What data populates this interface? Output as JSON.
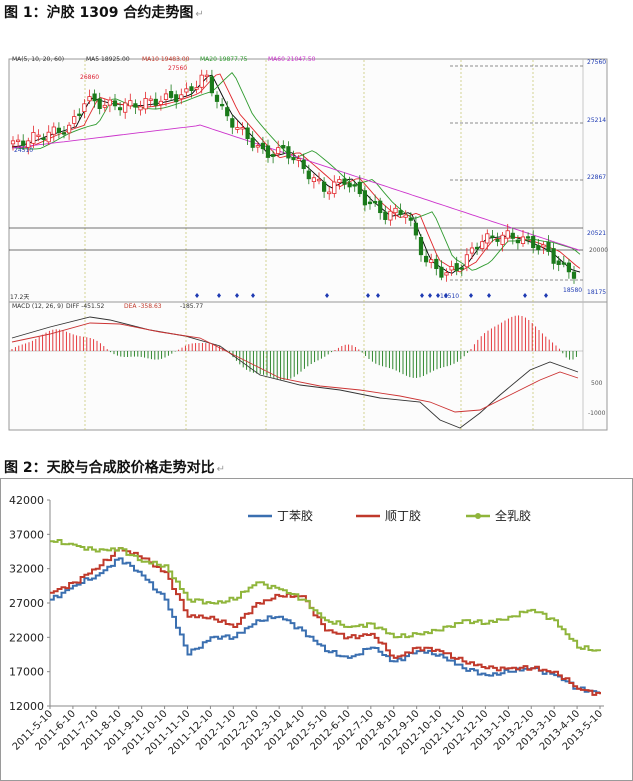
{
  "figure1": {
    "caption": "图 1：沪胶 1309 合约走势图",
    "ma_header": {
      "label": "MA(5, 10, 20, 60)",
      "ma5": "MA5 18925.00",
      "ma10": "MA10 19483.00",
      "ma20": "MA20 19877.75",
      "ma60": "MA60 21047.50"
    },
    "macd_header": {
      "label": "MACD (12, 26, 9)",
      "diff": "DIFF -451.52",
      "dea": "DEA -358.63",
      "macd": "-185.77"
    },
    "volume_label": "17.2天",
    "price_axis_labels": [
      "27560",
      "25214",
      "22867",
      "20521",
      "20000",
      "18175"
    ],
    "macd_axis_labels": [
      "500",
      "-1000"
    ],
    "annotations": [
      "26860",
      "27560",
      "24510",
      "16510",
      "18580"
    ],
    "colors": {
      "up": "#e2262b",
      "down": "#1a7a1a",
      "ma5": "#000000",
      "ma10": "#e0262b",
      "ma20": "#2f9b2f",
      "ma60": "#cc33cc",
      "diff": "#333333",
      "dea": "#cc3333",
      "marker": "#1f3bb3"
    }
  },
  "figure2": {
    "caption": "图 2：天胶与合成胶价格走势对比",
    "chart_data": {
      "type": "line",
      "title": "",
      "xlabel": "",
      "ylabel": "",
      "ylim": [
        12000,
        42000
      ],
      "yticks": [
        12000,
        17000,
        22000,
        27000,
        32000,
        37000,
        42000
      ],
      "legend_position": "top",
      "x": [
        "2011-5-10",
        "2011-6-10",
        "2011-7-10",
        "2011-8-10",
        "2011-9-10",
        "2011-10-10",
        "2011-11-10",
        "2011-12-10",
        "2012-1-10",
        "2012-2-10",
        "2012-3-10",
        "2012-4-10",
        "2012-5-10",
        "2012-6-10",
        "2012-7-10",
        "2012-8-10",
        "2012-9-10",
        "2012-10-10",
        "2012-11-10",
        "2012-12-10",
        "2013-1-10",
        "2013-2-10",
        "2013-3-10",
        "2013-4-10",
        "2013-5-10"
      ],
      "series": [
        {
          "name": "丁苯胶",
          "color": "#3a6fb0",
          "values": [
            27500,
            29500,
            31000,
            33500,
            31000,
            27500,
            19500,
            22000,
            22000,
            24500,
            25000,
            23000,
            20000,
            19000,
            20500,
            18500,
            20000,
            19500,
            17500,
            16500,
            17000,
            17500,
            16500,
            14500,
            14000
          ]
        },
        {
          "name": "顺丁胶",
          "color": "#c0392b",
          "values": [
            28500,
            30000,
            32000,
            35000,
            33500,
            31500,
            25000,
            25000,
            23500,
            27000,
            28000,
            28000,
            23000,
            22000,
            22500,
            19000,
            20500,
            20000,
            18500,
            17500,
            17500,
            17500,
            17000,
            14500,
            13700
          ]
        },
        {
          "name": "全乳胶",
          "color": "#8fb53b",
          "values": [
            36000,
            35500,
            34500,
            35000,
            33000,
            32500,
            27500,
            27000,
            27500,
            30000,
            29000,
            27500,
            24500,
            23500,
            24000,
            22000,
            22500,
            23000,
            24500,
            24000,
            25000,
            26000,
            24500,
            20500,
            20000
          ]
        }
      ]
    }
  }
}
